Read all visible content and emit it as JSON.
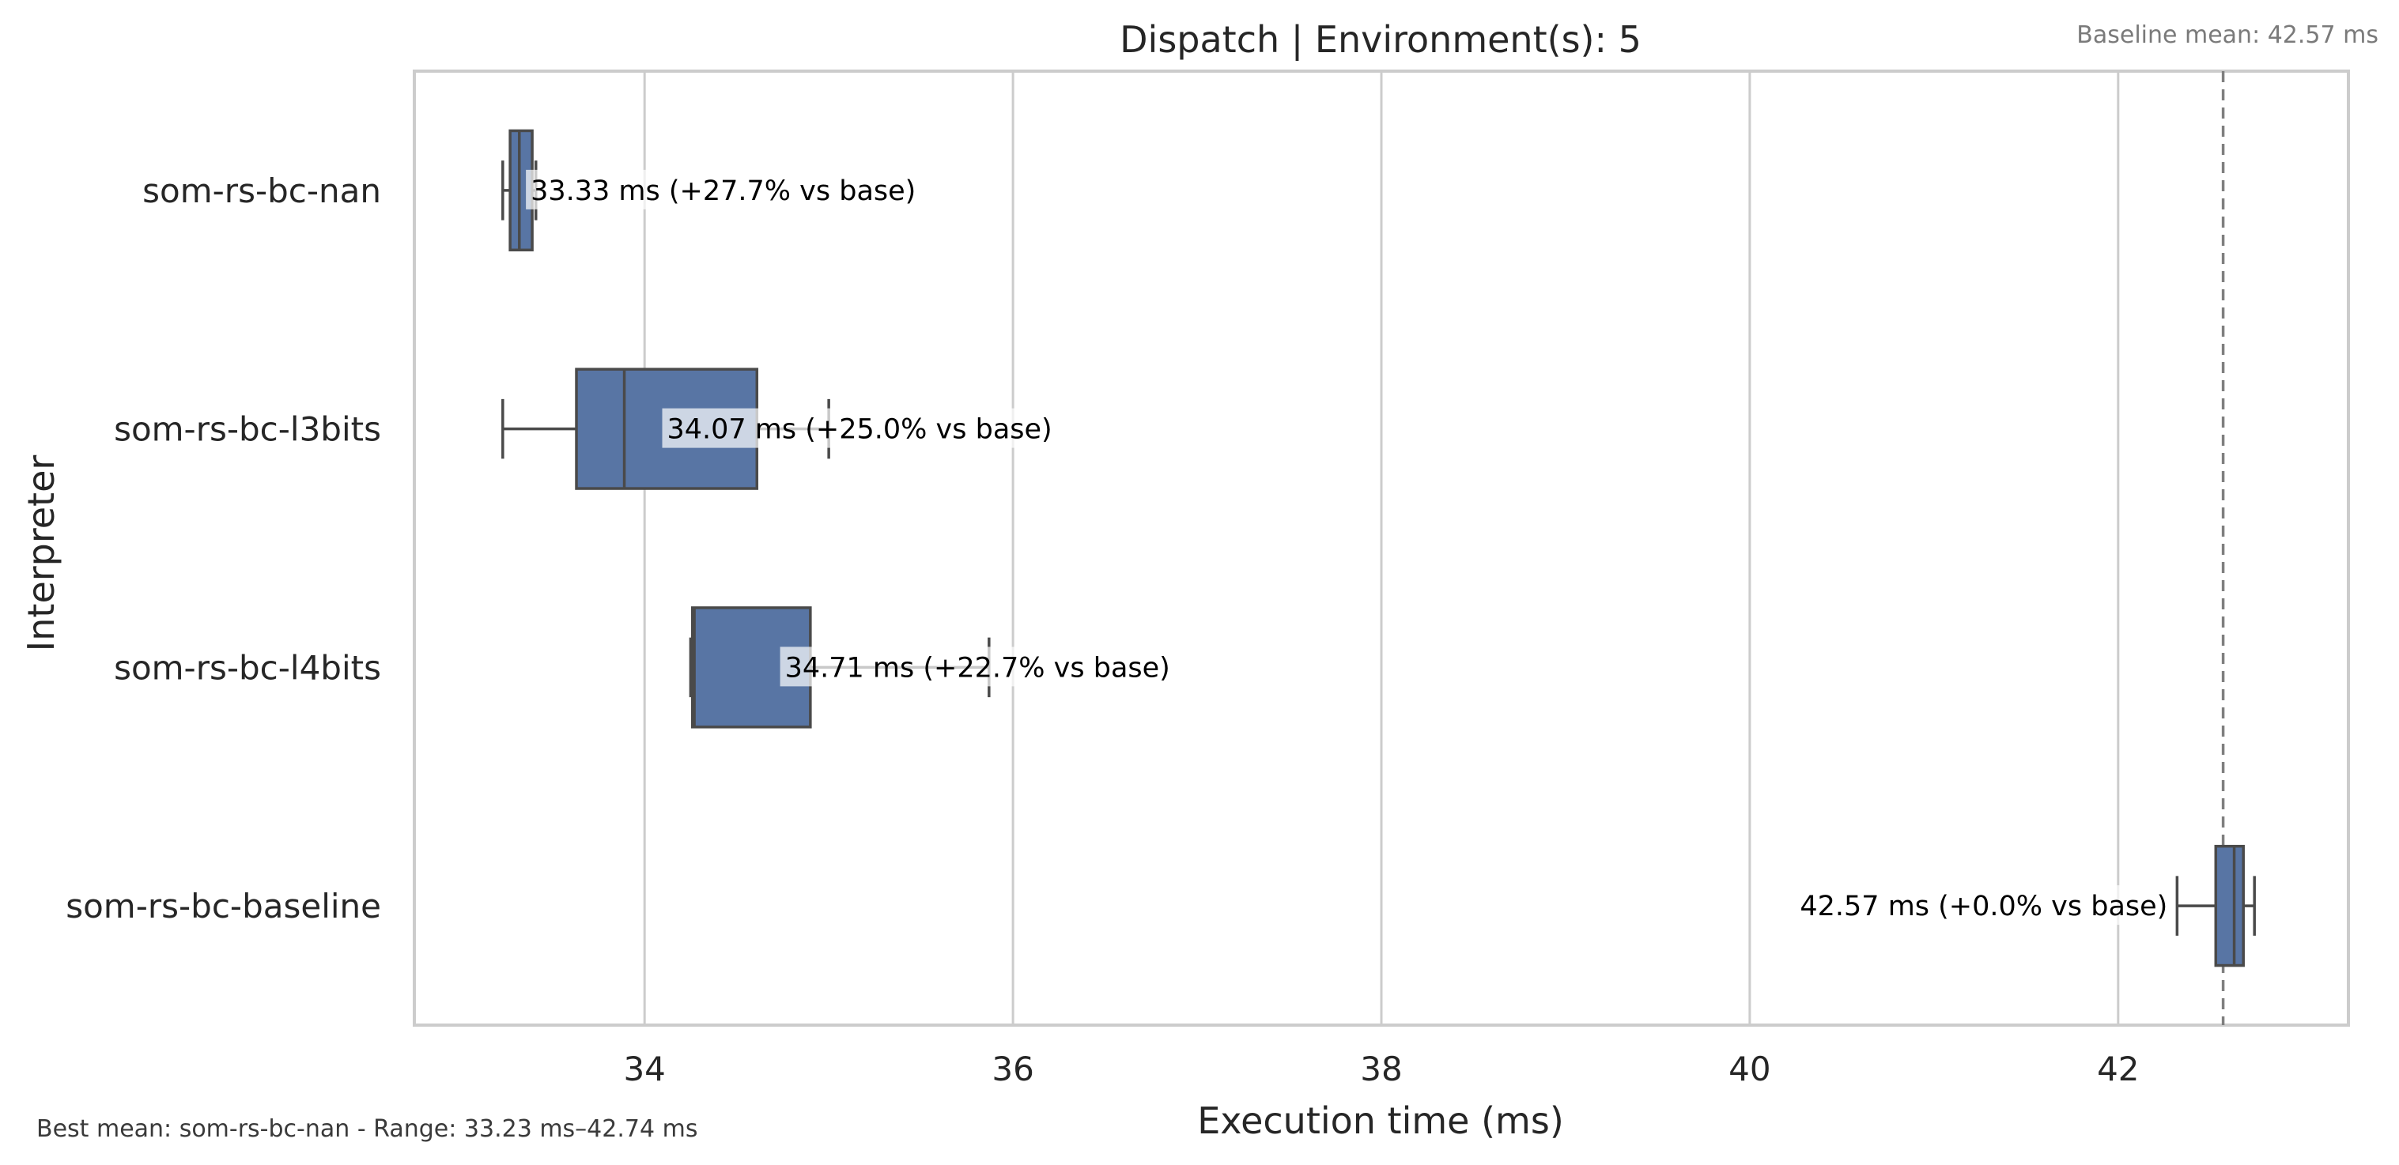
{
  "chart_data": {
    "type": "box",
    "title": "Dispatch | Environment(s): 5",
    "xlabel": "Execution time (ms)",
    "ylabel": "Interpreter",
    "xlim": [
      32.75,
      43.25
    ],
    "xticks": [
      34,
      36,
      38,
      40,
      42
    ],
    "grid": "vertical",
    "baseline": {
      "label": "Baseline mean: 42.57 ms",
      "value": 42.57
    },
    "footer": "Best mean: som-rs-bc-nan - Range: 33.23 ms–42.74 ms",
    "box_color": "#5875a4",
    "categories": [
      "som-rs-bc-nan",
      "som-rs-bc-l3bits",
      "som-rs-bc-l4bits",
      "som-rs-bc-baseline"
    ],
    "boxes": [
      {
        "name": "som-rs-bc-nan",
        "whislo": 33.23,
        "q1": 33.27,
        "med": 33.32,
        "q3": 33.39,
        "whishi": 33.41,
        "mean": 33.33,
        "label": "33.33 ms  (+27.7% vs base)"
      },
      {
        "name": "som-rs-bc-l3bits",
        "whislo": 33.23,
        "q1": 33.63,
        "med": 33.89,
        "q3": 34.61,
        "whishi": 35.0,
        "mean": 34.07,
        "label": "34.07 ms  (+25.0% vs base)"
      },
      {
        "name": "som-rs-bc-l4bits",
        "whislo": 34.25,
        "q1": 34.26,
        "med": 34.27,
        "q3": 34.9,
        "whishi": 35.87,
        "mean": 34.71,
        "label": "34.71 ms  (+22.7% vs base)"
      },
      {
        "name": "som-rs-bc-baseline",
        "whislo": 42.32,
        "q1": 42.53,
        "med": 42.63,
        "q3": 42.68,
        "whishi": 42.74,
        "mean": 42.57,
        "label": "42.57 ms  (+0.0% vs base)"
      }
    ]
  }
}
